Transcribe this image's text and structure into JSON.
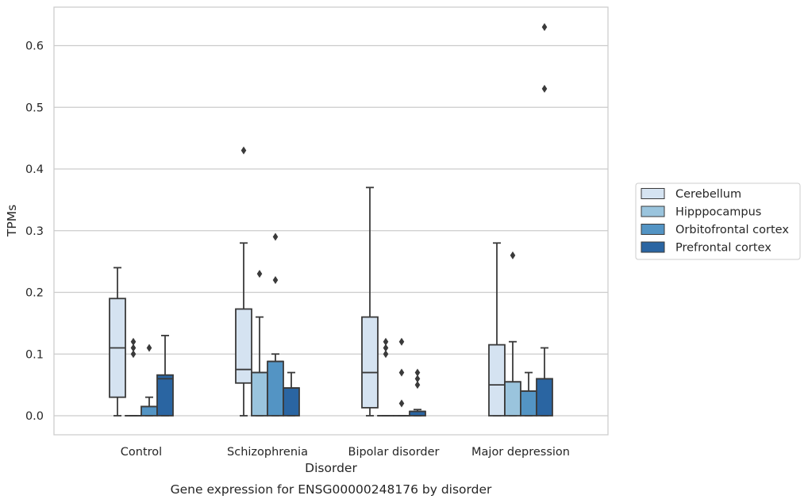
{
  "chart_data": {
    "type": "box",
    "title": "Gene expression for ENSG00000248176 by disorder",
    "xlabel": "Disorder",
    "ylabel": "TPMs",
    "categories": [
      "Control",
      "Schizophrenia",
      "Bipolar disorder",
      "Major depression"
    ],
    "y_ticks": [
      "0.0",
      "0.1",
      "0.2",
      "0.3",
      "0.4",
      "0.5",
      "0.6"
    ],
    "ylim": [
      -0.031,
      0.662
    ],
    "grid": true,
    "legend_position": "right",
    "series": [
      {
        "name": "Cerebellum",
        "color": "#d5e3f1",
        "boxes": [
          {
            "whislo": 0.0,
            "q1": 0.03,
            "med": 0.11,
            "q3": 0.19,
            "whishi": 0.24,
            "fliers": []
          },
          {
            "whislo": 0.0,
            "q1": 0.053,
            "med": 0.075,
            "q3": 0.173,
            "whishi": 0.28,
            "fliers": [
              0.43
            ]
          },
          {
            "whislo": 0.0,
            "q1": 0.013,
            "med": 0.07,
            "q3": 0.16,
            "whishi": 0.37,
            "fliers": []
          },
          {
            "whislo": 0.0,
            "q1": 0.0,
            "med": 0.05,
            "q3": 0.115,
            "whishi": 0.28,
            "fliers": []
          }
        ]
      },
      {
        "name": "Hipppocampus",
        "color": "#9ac4dd",
        "boxes": [
          {
            "whislo": 0.0,
            "q1": 0.0,
            "med": 0.0,
            "q3": 0.0,
            "whishi": 0.0,
            "fliers": [
              0.1,
              0.11,
              0.12
            ]
          },
          {
            "whislo": 0.0,
            "q1": 0.0,
            "med": 0.07,
            "q3": 0.07,
            "whishi": 0.16,
            "fliers": [
              0.23
            ]
          },
          {
            "whislo": 0.0,
            "q1": 0.0,
            "med": 0.0,
            "q3": 0.0,
            "whishi": 0.0,
            "fliers": [
              0.1,
              0.11,
              0.12
            ]
          },
          {
            "whislo": 0.0,
            "q1": 0.0,
            "med": 0.055,
            "q3": 0.055,
            "whishi": 0.12,
            "fliers": [
              0.26
            ]
          }
        ]
      },
      {
        "name": "Orbitofrontal cortex",
        "color": "#5394c4",
        "boxes": [
          {
            "whislo": 0.0,
            "q1": 0.0,
            "med": 0.015,
            "q3": 0.015,
            "whishi": 0.03,
            "fliers": [
              0.11
            ]
          },
          {
            "whislo": 0.0,
            "q1": 0.0,
            "med": 0.088,
            "q3": 0.088,
            "whishi": 0.1,
            "fliers": [
              0.22,
              0.29
            ]
          },
          {
            "whislo": 0.0,
            "q1": 0.0,
            "med": 0.0,
            "q3": 0.0,
            "whishi": 0.0,
            "fliers": [
              0.02,
              0.07,
              0.12
            ]
          },
          {
            "whislo": 0.0,
            "q1": 0.0,
            "med": 0.04,
            "q3": 0.04,
            "whishi": 0.07,
            "fliers": []
          }
        ]
      },
      {
        "name": "Prefrontal cortex",
        "color": "#2a65a2",
        "boxes": [
          {
            "whislo": 0.0,
            "q1": 0.0,
            "med": 0.06,
            "q3": 0.066,
            "whishi": 0.13,
            "fliers": []
          },
          {
            "whislo": 0.0,
            "q1": 0.0,
            "med": 0.045,
            "q3": 0.045,
            "whishi": 0.07,
            "fliers": []
          },
          {
            "whislo": 0.0,
            "q1": 0.0,
            "med": 0.007,
            "q3": 0.007,
            "whishi": 0.01,
            "fliers": [
              0.05,
              0.06,
              0.07
            ]
          },
          {
            "whislo": 0.0,
            "q1": 0.0,
            "med": 0.06,
            "q3": 0.06,
            "whishi": 0.11,
            "fliers": [
              0.53,
              0.63
            ]
          }
        ]
      }
    ]
  }
}
